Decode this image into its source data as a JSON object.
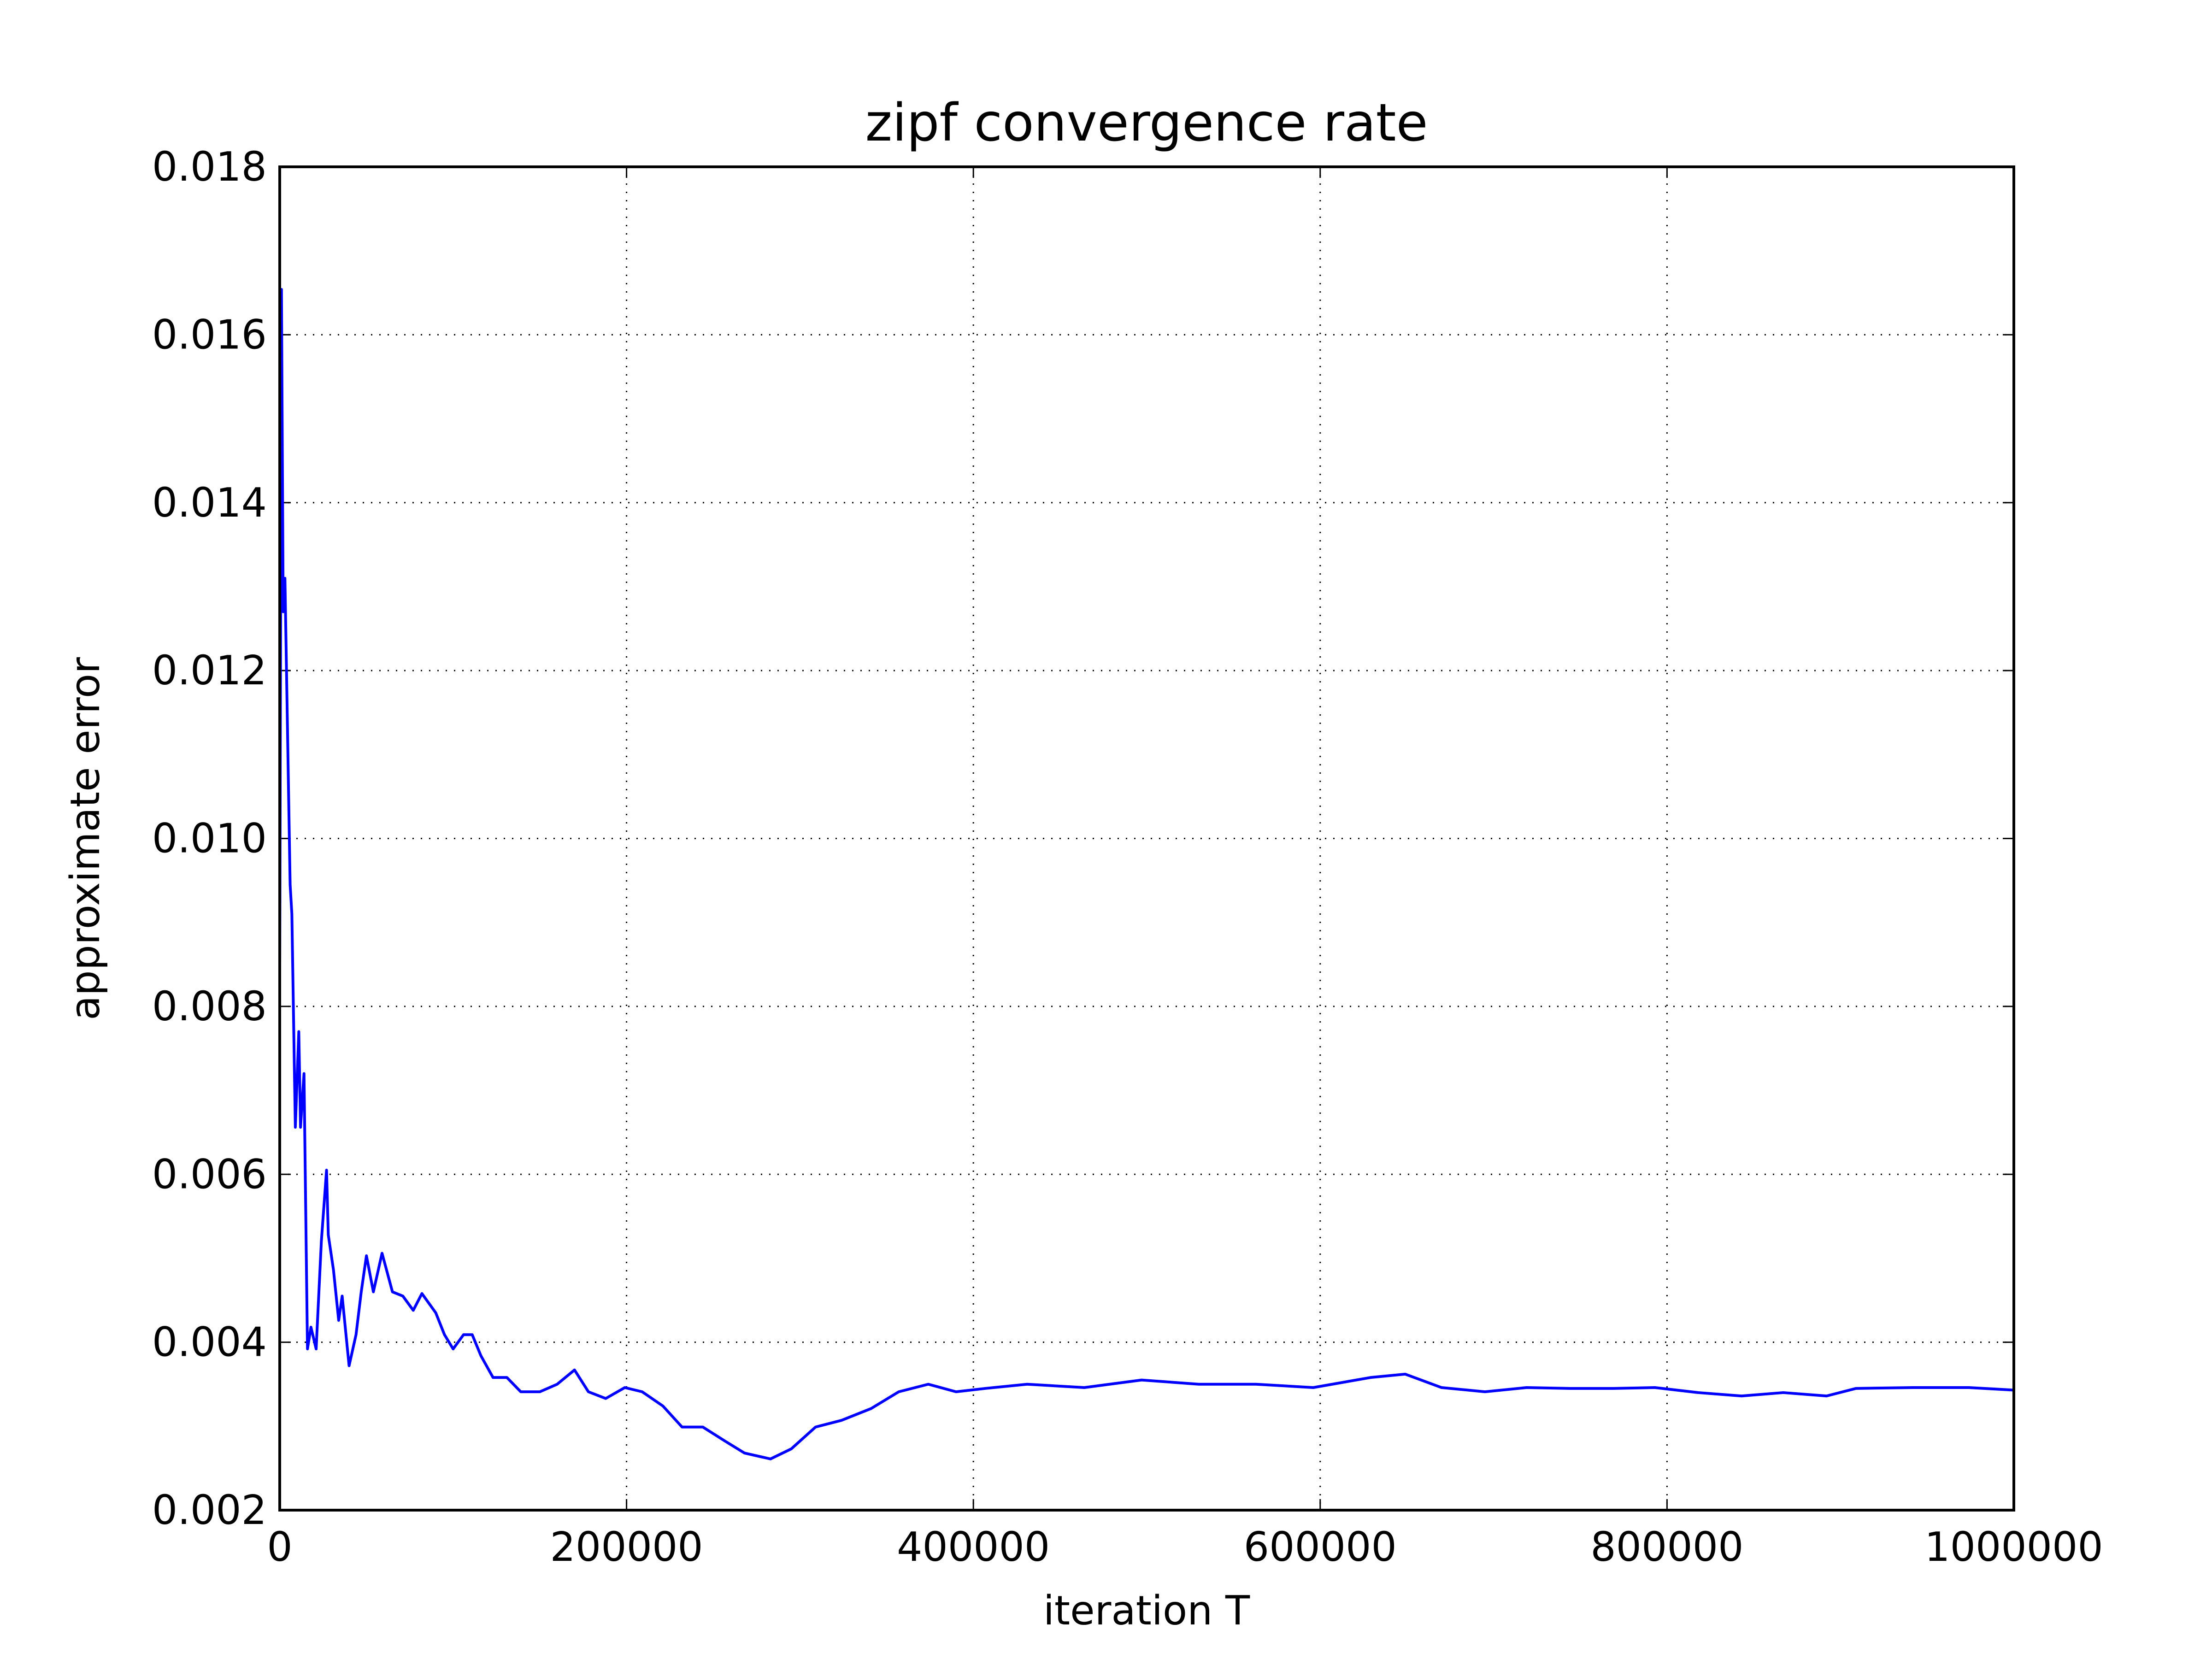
{
  "chart_data": {
    "type": "line",
    "title": "zipf convergence rate",
    "x_label": "iteration T",
    "y_label": "approximate error",
    "x": [
      0,
      1000,
      2000,
      3000,
      6000,
      7000,
      9000,
      11000,
      12000,
      14000,
      16000,
      18000,
      21000,
      24000,
      27000,
      28000,
      31000,
      34000,
      36000,
      40000,
      44000,
      47000,
      50000,
      54000,
      59000,
      65000,
      71000,
      77000,
      82000,
      90000,
      95000,
      100000,
      106000,
      111000,
      116000,
      123000,
      131000,
      139000,
      150000,
      160000,
      170000,
      178000,
      188000,
      199000,
      209000,
      221000,
      232000,
      244000,
      257000,
      268000,
      283000,
      295000,
      309000,
      324000,
      341000,
      357000,
      374000,
      390000,
      407000,
      431000,
      464000,
      497000,
      530000,
      563000,
      596000,
      629000,
      649000,
      670000,
      695000,
      719000,
      744000,
      769000,
      793000,
      818000,
      843000,
      867000,
      892000,
      909000,
      942000,
      974000,
      1000000
    ],
    "series": [
      {
        "name": "error",
        "color": "#0000ff",
        "values": [
          0.00843,
          0.01654,
          0.0127,
          0.0131,
          0.00945,
          0.0091,
          0.00656,
          0.0077,
          0.00656,
          0.0072,
          0.00392,
          0.00418,
          0.00392,
          0.0052,
          0.00605,
          0.00528,
          0.00486,
          0.00426,
          0.00455,
          0.00372,
          0.00409,
          0.0046,
          0.00503,
          0.0046,
          0.00506,
          0.0046,
          0.00455,
          0.00438,
          0.00458,
          0.00435,
          0.00409,
          0.00392,
          0.00409,
          0.00409,
          0.00384,
          0.00358,
          0.00358,
          0.00341,
          0.00341,
          0.0035,
          0.00367,
          0.00341,
          0.00333,
          0.00346,
          0.00341,
          0.00324,
          0.00299,
          0.00299,
          0.00282,
          0.00268,
          0.00261,
          0.00273,
          0.00299,
          0.00307,
          0.00321,
          0.00341,
          0.0035,
          0.00341,
          0.00345,
          0.0035,
          0.00346,
          0.00355,
          0.0035,
          0.0035,
          0.00346,
          0.00358,
          0.00362,
          0.00346,
          0.00341,
          0.00346,
          0.00345,
          0.00345,
          0.00346,
          0.0034,
          0.00336,
          0.0034,
          0.00336,
          0.00345,
          0.00346,
          0.00346,
          0.00343
        ]
      }
    ],
    "xlim": [
      0,
      1000000
    ],
    "xticks": [
      0,
      200000,
      400000,
      600000,
      800000,
      1000000
    ],
    "ylim": [
      0.002,
      0.018
    ],
    "yticks": [
      0.002,
      0.004,
      0.006,
      0.008,
      {
        "value": 0.01,
        "label": "0.010"
      },
      0.012,
      0.014,
      0.016,
      0.018
    ],
    "grid": true
  }
}
